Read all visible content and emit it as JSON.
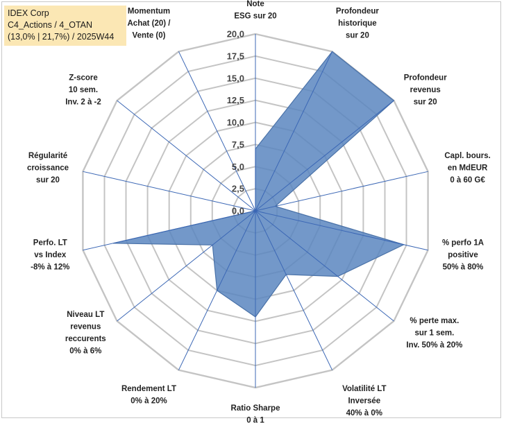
{
  "info": {
    "company": "IDEX Corp",
    "portfolio": "C4_Actions / 4_OTAN",
    "stats": "(13,0% | 21,7%) / 2025W44"
  },
  "chart_data": {
    "type": "radar",
    "title": "",
    "rlim": [
      0,
      20
    ],
    "ticks": [
      "0,0",
      "2,5",
      "5,0",
      "7,5",
      "10,0",
      "12,5",
      "15,0",
      "17,5",
      "20,0"
    ],
    "grid": true,
    "series_color": "#5b86c0",
    "axes": [
      {
        "lines": [
          "Note",
          "ESG sur 20"
        ],
        "value": 7
      },
      {
        "lines": [
          "Profondeur",
          "historique",
          "sur 20"
        ],
        "value": 20
      },
      {
        "lines": [
          "Profondeur",
          "revenus",
          "sur 20"
        ],
        "value": 20
      },
      {
        "lines": [
          "Capl. bours.",
          "en MdEUR",
          "0 à 60 G€"
        ],
        "value": 2.3
      },
      {
        "lines": [
          "% perfo 1A",
          "positive",
          "50% à 80%"
        ],
        "value": 17.2
      },
      {
        "lines": [
          "% perte max.",
          "sur 1 sem.",
          "Inv. 50% à 20%"
        ],
        "value": 11.9
      },
      {
        "lines": [
          "Volatilité LT",
          "Inversée",
          "40% à 0%"
        ],
        "value": 8
      },
      {
        "lines": [
          "Ratio Sharpe",
          "0 à 1"
        ],
        "value": 12
      },
      {
        "lines": [
          "Rendement LT",
          "0% à 20%"
        ],
        "value": 10
      },
      {
        "lines": [
          "Niveau LT",
          "revenus",
          "reccurents",
          "0% à 6%"
        ],
        "value": 6.2
      },
      {
        "lines": [
          "Perfo. LT",
          "vs Index",
          "-8% à 12%"
        ],
        "value": 16.5
      },
      {
        "lines": [
          "Régularité",
          "croissance",
          "sur 20"
        ],
        "value": 0
      },
      {
        "lines": [
          "Z-score",
          "10 sem.",
          "Inv. 2 à -2"
        ],
        "value": 0
      },
      {
        "lines": [
          "Momentum",
          "Achat (20) /",
          "Vente (0)"
        ],
        "value": 0
      }
    ]
  }
}
